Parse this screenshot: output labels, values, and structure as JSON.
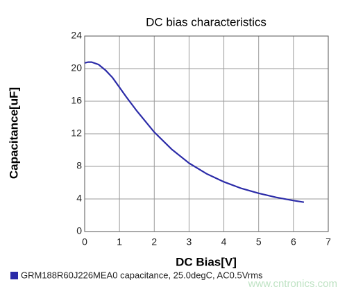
{
  "chart_data": {
    "type": "line",
    "title": "DC bias characteristics",
    "x_label": "DC Bias[V]",
    "y_label": "Capacitance[uF]",
    "x": [
      0,
      0.1,
      0.2,
      0.4,
      0.6,
      0.8,
      1.0,
      1.2,
      1.5,
      2.0,
      2.5,
      3.0,
      3.5,
      4.0,
      4.5,
      5.0,
      5.5,
      6.0,
      6.3
    ],
    "series": [
      {
        "name": "GRM188R60J226MEA0 capacitance, 25.0degC, AC0.5Vrms",
        "color": "#2b2ba8",
        "values": [
          20.7,
          20.8,
          20.8,
          20.5,
          19.8,
          18.9,
          17.7,
          16.5,
          14.8,
          12.2,
          10.1,
          8.4,
          7.1,
          6.1,
          5.3,
          4.7,
          4.2,
          3.8,
          3.6
        ]
      }
    ],
    "xlim": [
      0,
      7
    ],
    "xticks": [
      0,
      1,
      2,
      3,
      4,
      5,
      6,
      7
    ],
    "ylim": [
      0,
      24
    ],
    "yticks": [
      0,
      4,
      8,
      12,
      16,
      20,
      24
    ],
    "grid": true,
    "watermark": "www.cntronics.com"
  }
}
